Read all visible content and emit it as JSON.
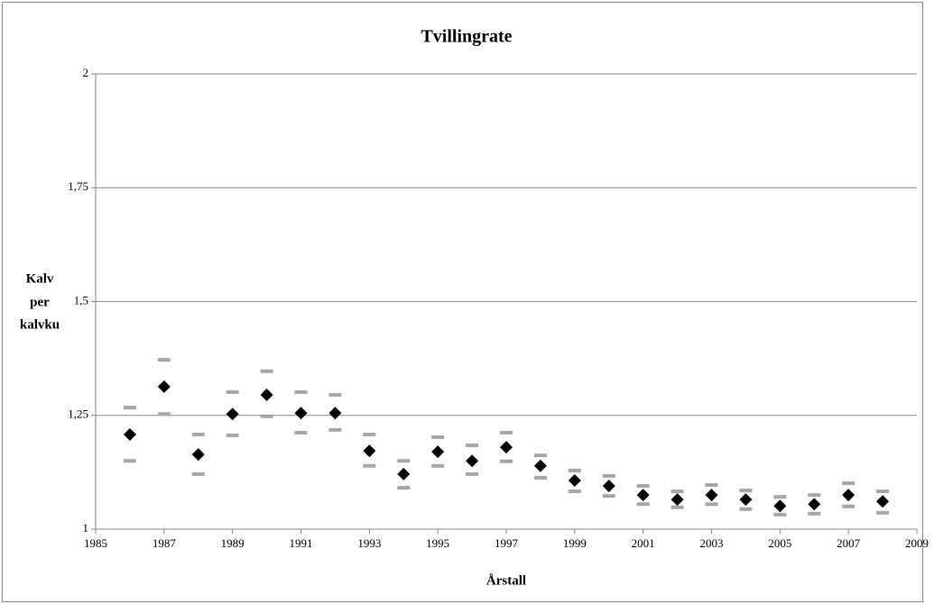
{
  "chart_data": {
    "type": "scatter",
    "title": "Tvillingrate",
    "xlabel": "Årstall",
    "ylabel": [
      "Kalv",
      "per",
      "kalvku"
    ],
    "x": [
      1986,
      1987,
      1988,
      1989,
      1990,
      1991,
      1992,
      1993,
      1994,
      1995,
      1996,
      1997,
      1998,
      1999,
      2000,
      2001,
      2002,
      2003,
      2004,
      2005,
      2006,
      2007,
      2008
    ],
    "series": [
      {
        "color": "#000000",
        "marker": "diamond",
        "values": [
          1.208,
          1.313,
          1.164,
          1.253,
          1.295,
          1.255,
          1.255,
          1.172,
          1.121,
          1.17,
          1.15,
          1.18,
          1.139,
          1.107,
          1.095,
          1.075,
          1.065,
          1.075,
          1.065,
          1.051,
          1.055,
          1.075,
          1.061
        ]
      },
      {
        "color": "#a6a6a6",
        "marker": "dash",
        "values": [
          1.267,
          1.372,
          1.208,
          1.301,
          1.347,
          1.301,
          1.295,
          1.208,
          1.15,
          1.202,
          1.184,
          1.212,
          1.162,
          1.129,
          1.117,
          1.095,
          1.083,
          1.097,
          1.085,
          1.071,
          1.075,
          1.101,
          1.083
        ]
      },
      {
        "color": "#a6a6a6",
        "marker": "dash",
        "values": [
          1.15,
          1.253,
          1.121,
          1.206,
          1.248,
          1.212,
          1.218,
          1.139,
          1.091,
          1.139,
          1.121,
          1.149,
          1.113,
          1.083,
          1.073,
          1.055,
          1.048,
          1.055,
          1.044,
          1.032,
          1.034,
          1.05,
          1.036
        ]
      }
    ],
    "xlim": [
      1985,
      2009
    ],
    "xticks": [
      1985,
      1987,
      1989,
      1991,
      1993,
      1995,
      1997,
      1999,
      2001,
      2003,
      2005,
      2007,
      2009
    ],
    "ylim": [
      1,
      2
    ],
    "yticks": [
      1,
      {
        "value": 1.25,
        "label": "1,25"
      },
      {
        "value": 1.5,
        "label": "1,5"
      },
      {
        "value": 1.75,
        "label": "1,75"
      },
      2
    ],
    "grid": true
  }
}
